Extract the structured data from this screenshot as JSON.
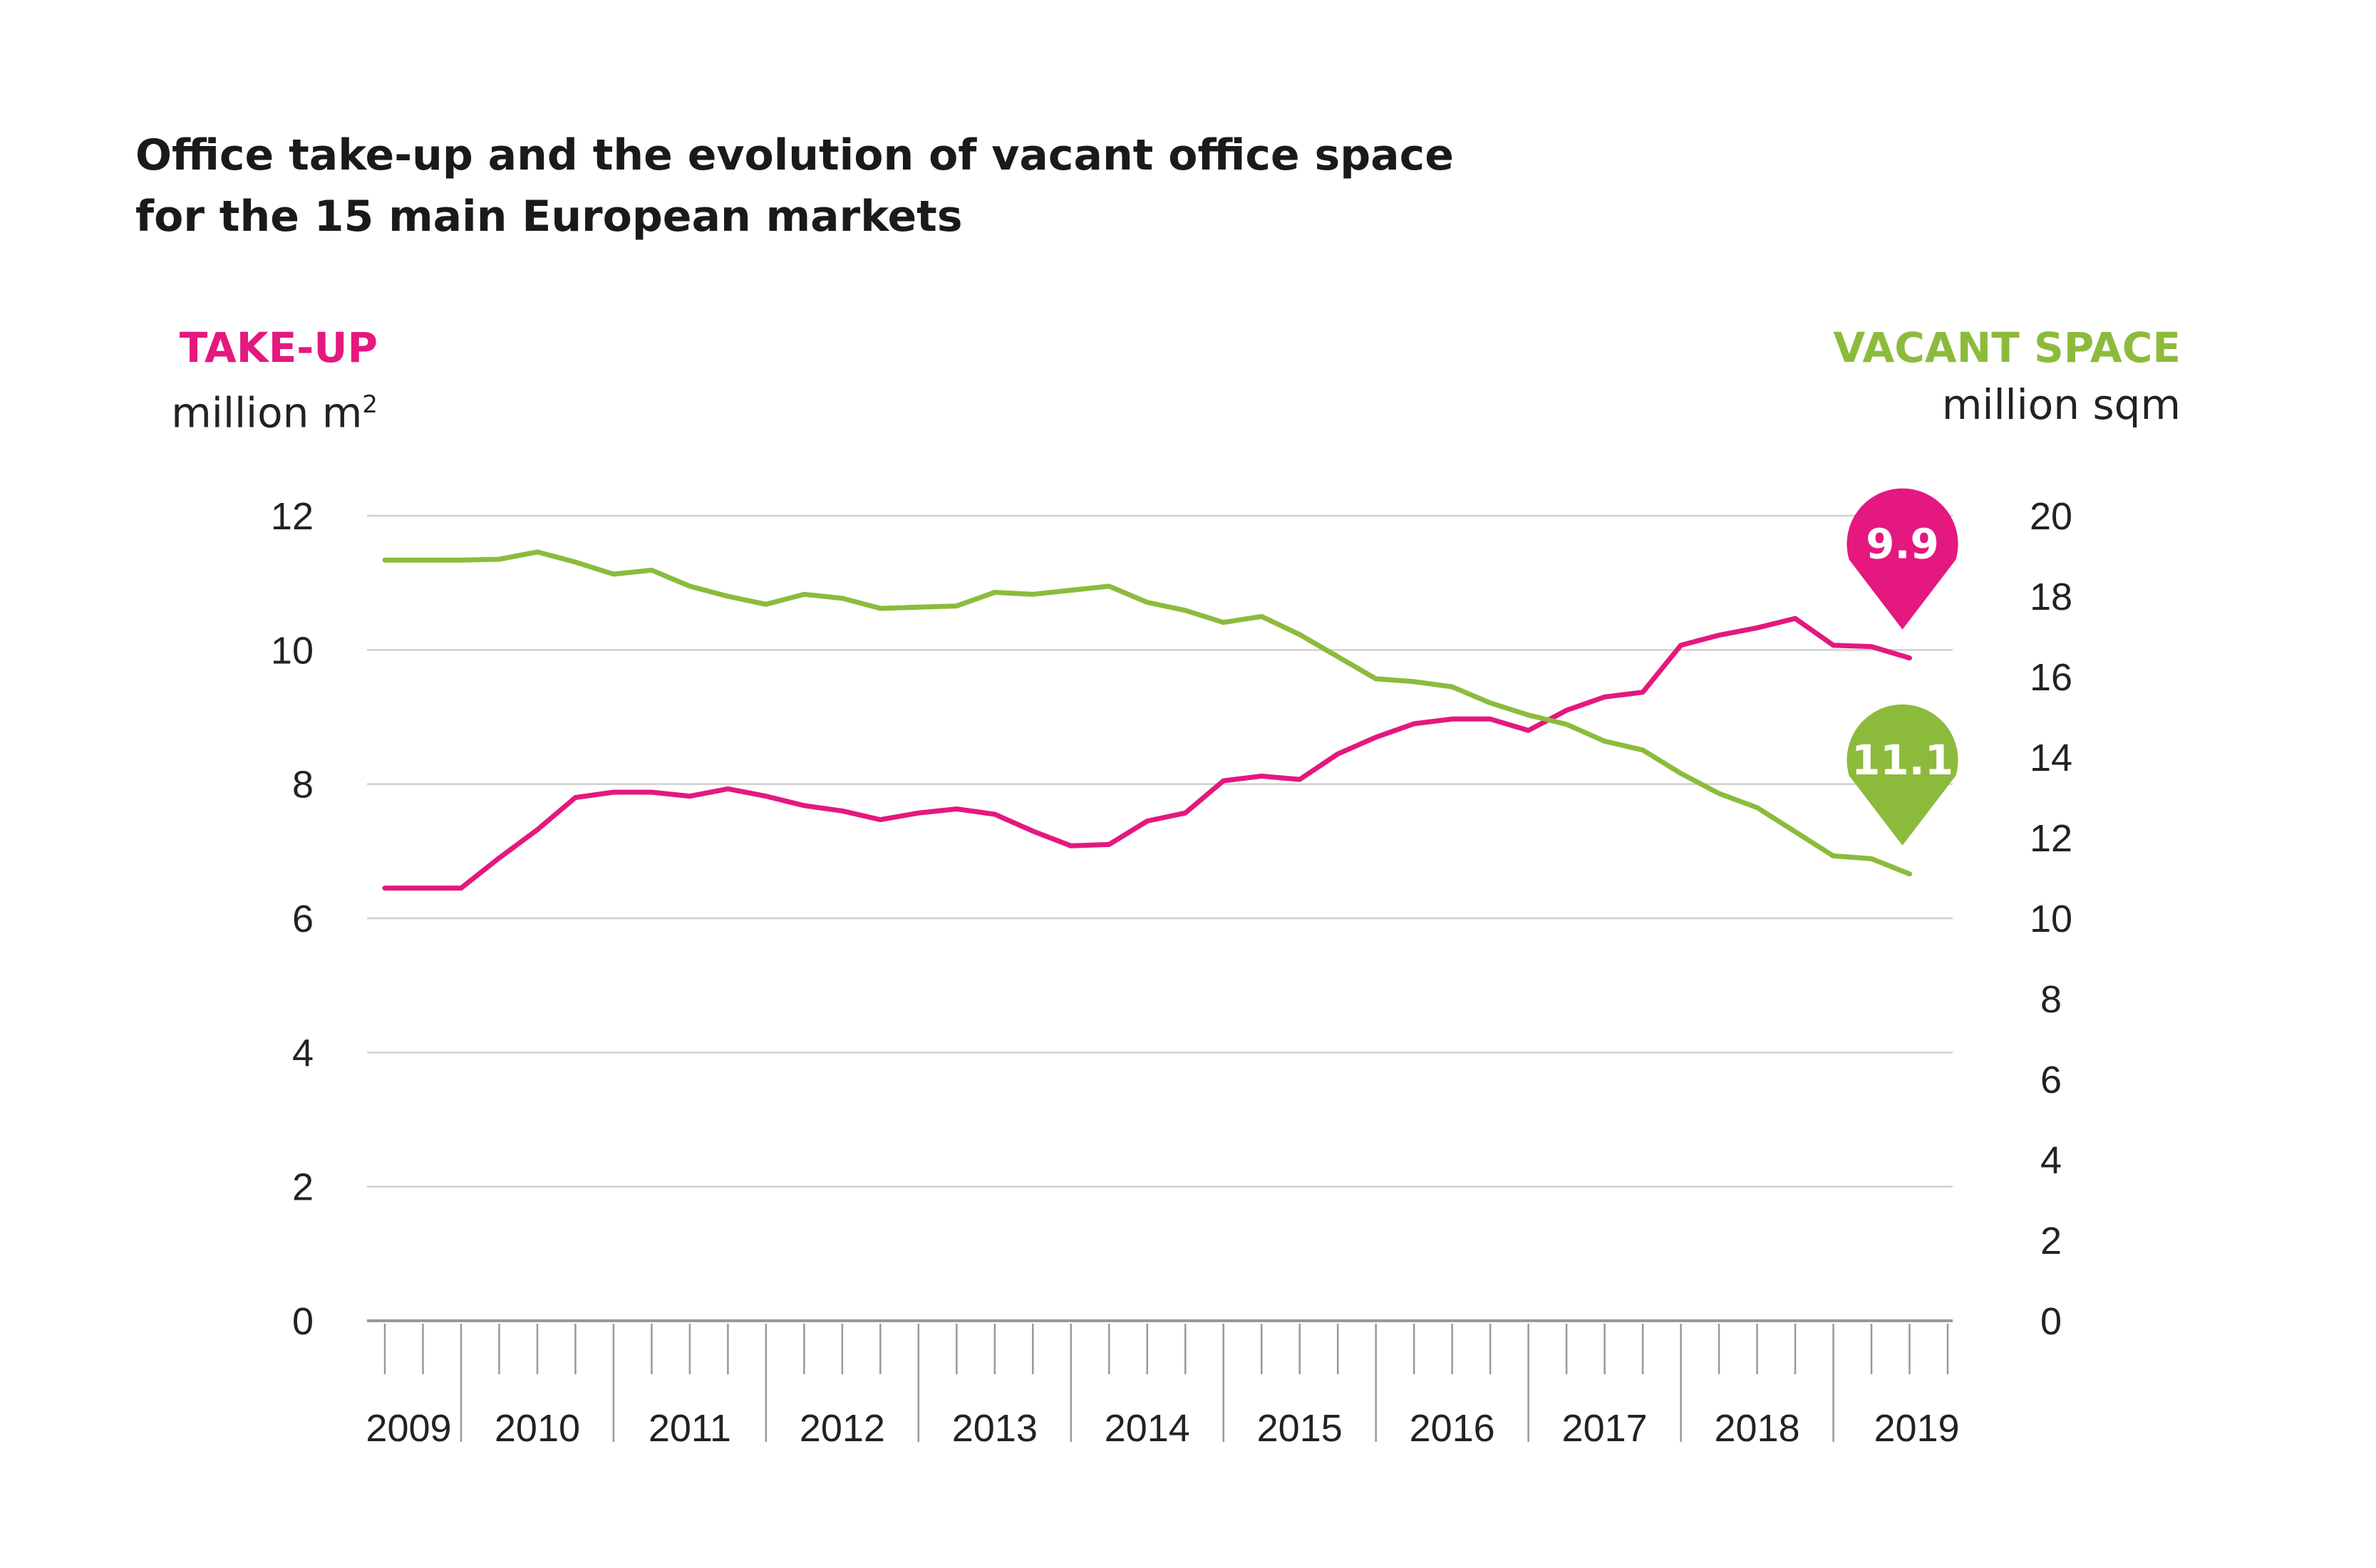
{
  "title_lines": [
    "Office take-up and the evolution of vacant office space",
    "for the 15 main European markets"
  ],
  "left_axis": {
    "label": "TAKE-UP",
    "unit": "million m",
    "unit_sup": "2"
  },
  "right_axis": {
    "label": "VACANT SPACE",
    "unit": "million sqm"
  },
  "colors": {
    "takeup": "#e4187f",
    "vacant": "#8cbb3c",
    "grid": "#d0d0d0",
    "axis": "#999999"
  },
  "chart_data": {
    "type": "line",
    "title": "Office take-up and the evolution of vacant office space for the 15 main European markets",
    "x_start": 2009.0,
    "x_step": 0.25,
    "xlim": [
      2009.0,
      2019.25
    ],
    "x_tick_labels": [
      "2009",
      "2010",
      "2011",
      "2012",
      "2013",
      "2014",
      "2015",
      "2016",
      "2017",
      "2018",
      "2019"
    ],
    "left_ylim": [
      0,
      12
    ],
    "left_ticks": [
      "0",
      "2",
      "4",
      "6",
      "8",
      "10",
      "12"
    ],
    "right_ylim": [
      0,
      20
    ],
    "right_ticks": [
      "0",
      "2",
      "4",
      "6",
      "8",
      "10",
      "12",
      "14",
      "16",
      "18",
      "20"
    ],
    "series": [
      {
        "name": "Take-up",
        "axis": "left",
        "unit": "million m2",
        "values": [
          6.45,
          6.45,
          6.45,
          6.9,
          7.32,
          7.8,
          7.88,
          7.88,
          7.82,
          7.93,
          7.82,
          7.68,
          7.6,
          7.47,
          7.57,
          7.63,
          7.55,
          7.3,
          7.08,
          7.1,
          7.45,
          7.57,
          8.05,
          8.12,
          8.07,
          8.45,
          8.7,
          8.9,
          8.97,
          8.97,
          8.8,
          9.1,
          9.3,
          9.37,
          10.07,
          10.22,
          10.33,
          10.47,
          10.07,
          10.05,
          9.88
        ],
        "last_label": "9.9"
      },
      {
        "name": "Vacant space",
        "axis": "right",
        "unit": "million sqm",
        "values": [
          18.9,
          18.9,
          18.9,
          18.92,
          19.1,
          18.85,
          18.55,
          18.65,
          18.25,
          18.0,
          17.8,
          18.05,
          17.95,
          17.7,
          17.73,
          17.76,
          18.1,
          18.05,
          18.15,
          18.25,
          17.85,
          17.65,
          17.35,
          17.5,
          17.05,
          16.5,
          15.95,
          15.88,
          15.75,
          15.35,
          15.05,
          14.82,
          14.4,
          14.18,
          13.6,
          13.1,
          12.75,
          12.15,
          11.55,
          11.48,
          11.1
        ],
        "last_label": "11.1"
      }
    ]
  }
}
